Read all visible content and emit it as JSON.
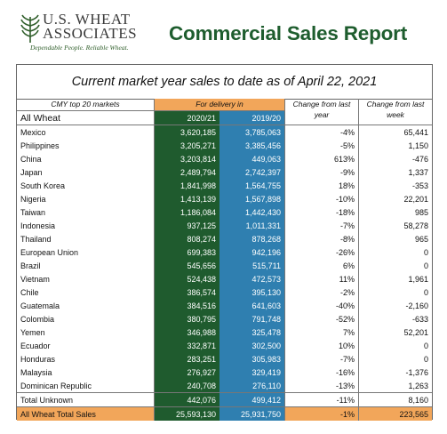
{
  "header": {
    "logo_line1": "U.S. WHEAT",
    "logo_line2": "ASSOCIATES",
    "logo_tagline": "Dependable People. Reliable Wheat.",
    "title": "Commercial Sales Report"
  },
  "subtitle": "Current market year sales to date as of April 22, 2021",
  "columns": {
    "markets_label": "CMY top 20 markets",
    "delivery_label": "For delivery in",
    "change_year_label": "Change from last year",
    "change_week_label": "Change from last week",
    "name_header": "All Wheat",
    "year_a": "2020/21",
    "year_b": "2019/20"
  },
  "rows": [
    {
      "name": "Mexico",
      "a": "3,620,185",
      "b": "3,785,063",
      "pct": "-4%",
      "week": "65,441"
    },
    {
      "name": "Philippines",
      "a": "3,205,271",
      "b": "3,385,456",
      "pct": "-5%",
      "week": "1,150"
    },
    {
      "name": "China",
      "a": "3,203,814",
      "b": "449,063",
      "pct": "613%",
      "week": "-476"
    },
    {
      "name": "Japan",
      "a": "2,489,794",
      "b": "2,742,397",
      "pct": "-9%",
      "week": "1,337"
    },
    {
      "name": "South Korea",
      "a": "1,841,998",
      "b": "1,564,755",
      "pct": "18%",
      "week": "-353"
    },
    {
      "name": "Nigeria",
      "a": "1,413,139",
      "b": "1,567,898",
      "pct": "-10%",
      "week": "22,201"
    },
    {
      "name": "Taiwan",
      "a": "1,186,084",
      "b": "1,442,430",
      "pct": "-18%",
      "week": "985"
    },
    {
      "name": "Indonesia",
      "a": "937,125",
      "b": "1,011,331",
      "pct": "-7%",
      "week": "58,278"
    },
    {
      "name": "Thailand",
      "a": "808,274",
      "b": "878,268",
      "pct": "-8%",
      "week": "965"
    },
    {
      "name": "European Union",
      "a": "699,383",
      "b": "942,196",
      "pct": "-26%",
      "week": "0"
    },
    {
      "name": "Brazil",
      "a": "545,656",
      "b": "515,711",
      "pct": "6%",
      "week": "0"
    },
    {
      "name": "Vietnam",
      "a": "524,438",
      "b": "472,573",
      "pct": "11%",
      "week": "1,961"
    },
    {
      "name": "Chile",
      "a": "386,574",
      "b": "395,130",
      "pct": "-2%",
      "week": "0"
    },
    {
      "name": "Guatemala",
      "a": "384,516",
      "b": "641,603",
      "pct": "-40%",
      "week": "-2,160"
    },
    {
      "name": "Colombia",
      "a": "380,795",
      "b": "791,748",
      "pct": "-52%",
      "week": "-633"
    },
    {
      "name": "Yemen",
      "a": "346,988",
      "b": "325,478",
      "pct": "7%",
      "week": "52,201"
    },
    {
      "name": "Ecuador",
      "a": "332,871",
      "b": "302,500",
      "pct": "10%",
      "week": "0"
    },
    {
      "name": "Honduras",
      "a": "283,251",
      "b": "305,983",
      "pct": "-7%",
      "week": "0"
    },
    {
      "name": "Malaysia",
      "a": "276,927",
      "b": "329,419",
      "pct": "-16%",
      "week": "-1,376"
    },
    {
      "name": "Dominican Republic",
      "a": "240,708",
      "b": "276,110",
      "pct": "-13%",
      "week": "1,263"
    }
  ],
  "total_unknown": {
    "name": "Total Unknown",
    "a": "442,076",
    "b": "499,412",
    "pct": "-11%",
    "week": "8,160"
  },
  "total": {
    "name": "All Wheat Total Sales",
    "a": "25,593,130",
    "b": "25,931,750",
    "pct": "-1%",
    "week": "223,565"
  },
  "colors": {
    "title_green": "#1e5d2e",
    "col_2020_green": "#1f5b2e",
    "col_2019_blue": "#2f7fb0",
    "highlight_orange": "#f2a65a"
  },
  "icons": {
    "logo": "wheat-leaf-logo-icon"
  }
}
